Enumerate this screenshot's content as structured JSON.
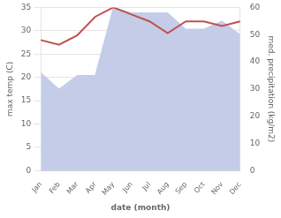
{
  "chart_data": {
    "type": "line",
    "xlabel": "date (month)",
    "ylabel": "max temp (C)",
    "y2label": "med. precipitation (kg/m2)",
    "categories": [
      "Jan",
      "Feb",
      "Mar",
      "Apr",
      "May",
      "Jun",
      "Jul",
      "Aug",
      "Sep",
      "Oct",
      "Nov",
      "Dec"
    ],
    "series": [
      {
        "type": "line",
        "color": "#c0504d",
        "values": [
          28.0,
          27.0,
          29.0,
          33.0,
          35.0,
          33.5,
          32.0,
          29.5,
          32.0,
          32.0,
          31.0,
          32.0
        ]
      },
      {
        "type": "area",
        "axis": "y2",
        "color": "#c5cce8",
        "values": [
          36,
          30,
          35,
          35,
          60,
          58,
          58,
          58,
          52,
          52,
          55,
          50
        ]
      }
    ],
    "ylim": [
      0,
      35
    ],
    "yticks": [
      0,
      5,
      10,
      15,
      20,
      25,
      30,
      35
    ],
    "y2lim": [
      0,
      60
    ],
    "y2ticks": [
      0,
      10,
      20,
      30,
      40,
      50,
      60
    ],
    "grid": true
  }
}
